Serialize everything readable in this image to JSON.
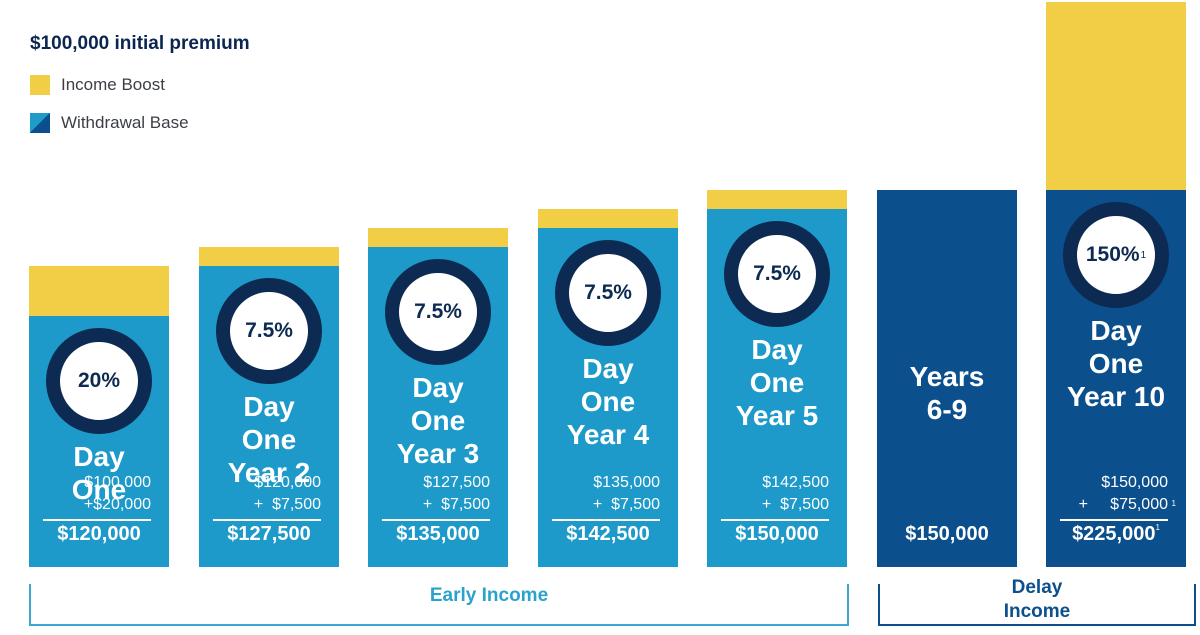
{
  "chart_data": {
    "type": "bar",
    "stacked": true,
    "title": "$100,000 initial premium",
    "legend": [
      {
        "label": "Income Boost",
        "color": "#f2cd46"
      },
      {
        "label": "Withdrawal Base",
        "color": "#1d9ac9",
        "color2": "#0b4f8c"
      }
    ],
    "categories": [
      {
        "label_lines": [
          "Day",
          "One"
        ],
        "rate": "20%",
        "rate_note": "",
        "line1": "$100,000",
        "line2": "+$20,000",
        "line2_note": "",
        "total": "$120,000",
        "total_note": "",
        "withdrawal_base": 100000,
        "income_boost": 20000,
        "style": "light"
      },
      {
        "label_lines": [
          "Day",
          "One",
          "Year 2"
        ],
        "rate": "7.5%",
        "rate_note": "",
        "line1": "$120,000",
        "line2": "+  $7,500",
        "line2_note": "",
        "total": "$127,500",
        "total_note": "",
        "withdrawal_base": 120000,
        "income_boost": 7500,
        "style": "light"
      },
      {
        "label_lines": [
          "Day",
          "One",
          "Year 3"
        ],
        "rate": "7.5%",
        "rate_note": "",
        "line1": "$127,500",
        "line2": "+  $7,500",
        "line2_note": "",
        "total": "$135,000",
        "total_note": "",
        "withdrawal_base": 127500,
        "income_boost": 7500,
        "style": "light"
      },
      {
        "label_lines": [
          "Day",
          "One",
          "Year 4"
        ],
        "rate": "7.5%",
        "rate_note": "",
        "line1": "$135,000",
        "line2": "+  $7,500",
        "line2_note": "",
        "total": "$142,500",
        "total_note": "",
        "withdrawal_base": 135000,
        "income_boost": 7500,
        "style": "light"
      },
      {
        "label_lines": [
          "Day",
          "One",
          "Year 5"
        ],
        "rate": "7.5%",
        "rate_note": "",
        "line1": "$142,500",
        "line2": "+  $7,500",
        "line2_note": "",
        "total": "$150,000",
        "total_note": "",
        "withdrawal_base": 142500,
        "income_boost": 7500,
        "style": "light"
      },
      {
        "label_lines": [
          "Years",
          "6-9"
        ],
        "rate": "",
        "rate_note": "",
        "line1": "",
        "line2": "",
        "line2_note": "",
        "total": "$150,000",
        "total_note": "",
        "withdrawal_base": 150000,
        "income_boost": 0,
        "style": "dark"
      },
      {
        "label_lines": [
          "Day",
          "One",
          "Year 10"
        ],
        "rate": "150%",
        "rate_note": "1",
        "line1": "$150,000",
        "line2": "+     $75,000",
        "line2_note": "1",
        "total": "$225,000",
        "total_note": "1",
        "withdrawal_base": 150000,
        "income_boost": 75000,
        "style": "dark"
      }
    ],
    "groups": [
      {
        "label": "Early Income",
        "color": "#2aa3cc"
      },
      {
        "label_lines": [
          "Delay",
          "Income"
        ],
        "color": "#0b4f8c"
      }
    ],
    "ylim": [
      0,
      225000
    ]
  }
}
